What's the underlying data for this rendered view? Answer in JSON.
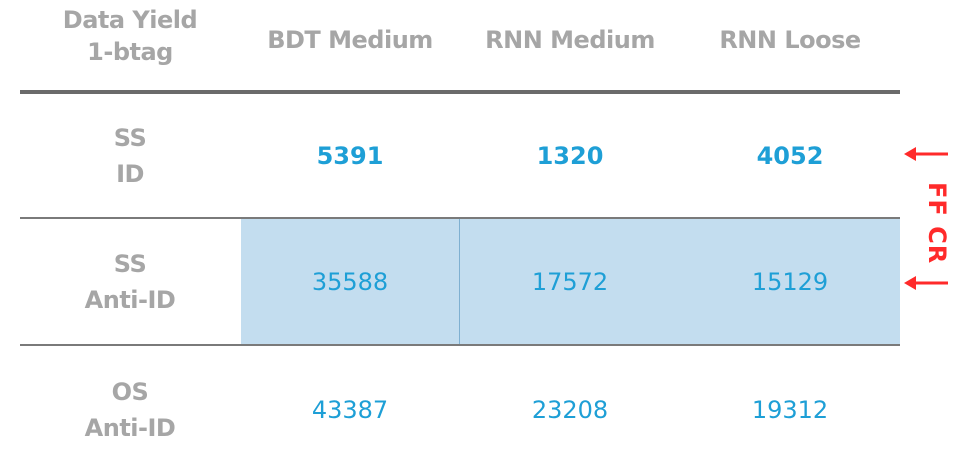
{
  "header": {
    "corner_line1": "Data Yield",
    "corner_line2": "1-btag",
    "columns": [
      "BDT Medium",
      "RNN Medium",
      "RNN Loose"
    ]
  },
  "rows": [
    {
      "label_line1": "SS",
      "label_line2": "ID",
      "values": [
        "5391",
        "1320",
        "4052"
      ]
    },
    {
      "label_line1": "SS",
      "label_line2": "Anti-ID",
      "values": [
        "35588",
        "17572",
        "15129"
      ]
    },
    {
      "label_line1": "OS",
      "label_line2": "Anti-ID",
      "values": [
        "43387",
        "23208",
        "19312"
      ]
    }
  ],
  "annotation": {
    "side_label": "FF CR",
    "arrow_icon": "left-arrow-icon",
    "color": "#ff2a2a"
  },
  "colors": {
    "value_text": "#1e9fd6",
    "header_text": "#a6a6a6",
    "highlight_fill": "#c3ddef"
  }
}
